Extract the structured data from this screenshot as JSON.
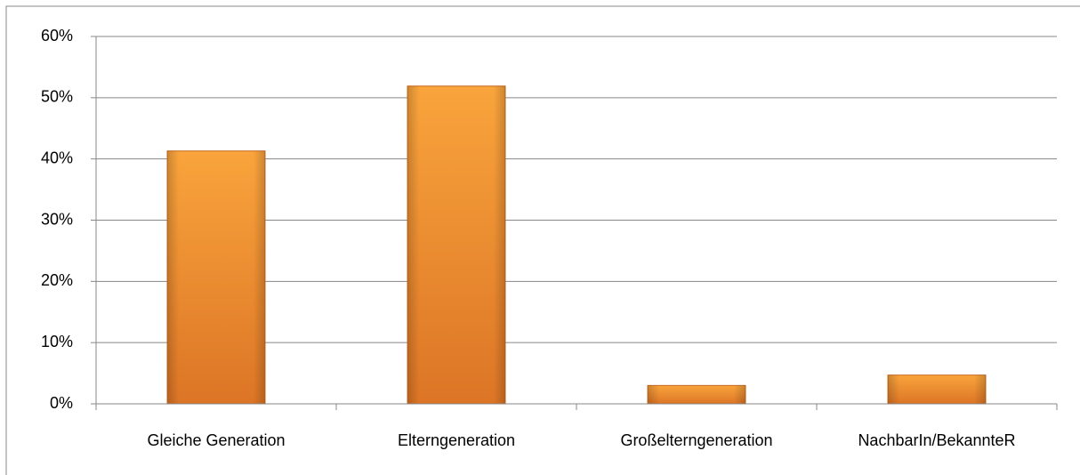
{
  "chart_data": {
    "type": "bar",
    "categories": [
      "Gleiche Generation",
      "Elterngeneration",
      "Großelterngeneration",
      "NachbarIn/BekannteR"
    ],
    "values": [
      41.3,
      51.9,
      3.0,
      4.7
    ],
    "color": "#f08f2e",
    "ylim": [
      0,
      60
    ],
    "yticks": [
      {
        "value": 0,
        "label": "0%"
      },
      {
        "value": 10,
        "label": "10%"
      },
      {
        "value": 20,
        "label": "20%"
      },
      {
        "value": 30,
        "label": "30%"
      },
      {
        "value": 40,
        "label": "40%"
      },
      {
        "value": 50,
        "label": "50%"
      },
      {
        "value": 60,
        "label": "60%"
      }
    ],
    "grid": true
  }
}
